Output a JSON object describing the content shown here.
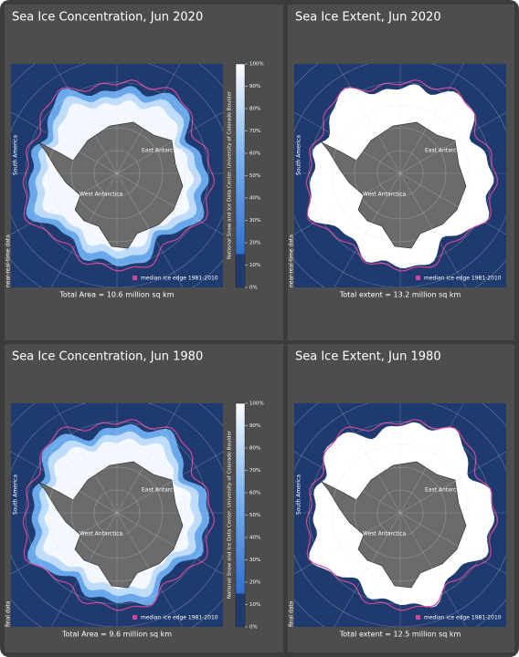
{
  "panels": [
    {
      "title": "Sea Ice Concentration, Jun 2020",
      "footer": "Total Area = 10.6 million sq km",
      "legend": "median ice edge 1981-2010",
      "side_label": "near-real-time data",
      "region_labels": [
        "South America",
        "East Antarctica",
        "West Antarctica"
      ],
      "credit": "National Snow and Ice Data Center, University of Colorado Boulder",
      "colorbar": [
        "0%",
        "10%",
        "20%",
        "30%",
        "40%",
        "50%",
        "60%",
        "70%",
        "80%",
        "90%",
        "100%"
      ]
    },
    {
      "title": "Sea Ice Extent, Jun 2020",
      "footer": "Total extent = 13.2 million sq km",
      "legend": "median ice edge 1981-2010",
      "side_label": "near-real-time data",
      "region_labels": [
        "South America",
        "East Antarctica",
        "West Antarctica"
      ]
    },
    {
      "title": "Sea Ice Concentration, Jun 1980",
      "footer": "Total Area = 9.6 million sq km",
      "legend": "median ice edge 1981-2010",
      "side_label": "final data",
      "region_labels": [
        "South America",
        "East Antarctica",
        "West Antarctica"
      ],
      "credit": "National Snow and Ice Data Center, University of Colorado Boulder",
      "colorbar": [
        "0%",
        "10%",
        "20%",
        "30%",
        "40%",
        "50%",
        "60%",
        "70%",
        "80%",
        "90%",
        "100%"
      ]
    },
    {
      "title": "Sea Ice Extent, Jun 1980",
      "footer": "Total extent = 12.5 million sq km",
      "legend": "median ice edge 1981-2010",
      "side_label": "final data",
      "region_labels": [
        "South America",
        "East Antarctica",
        "West Antarctica"
      ]
    }
  ]
}
